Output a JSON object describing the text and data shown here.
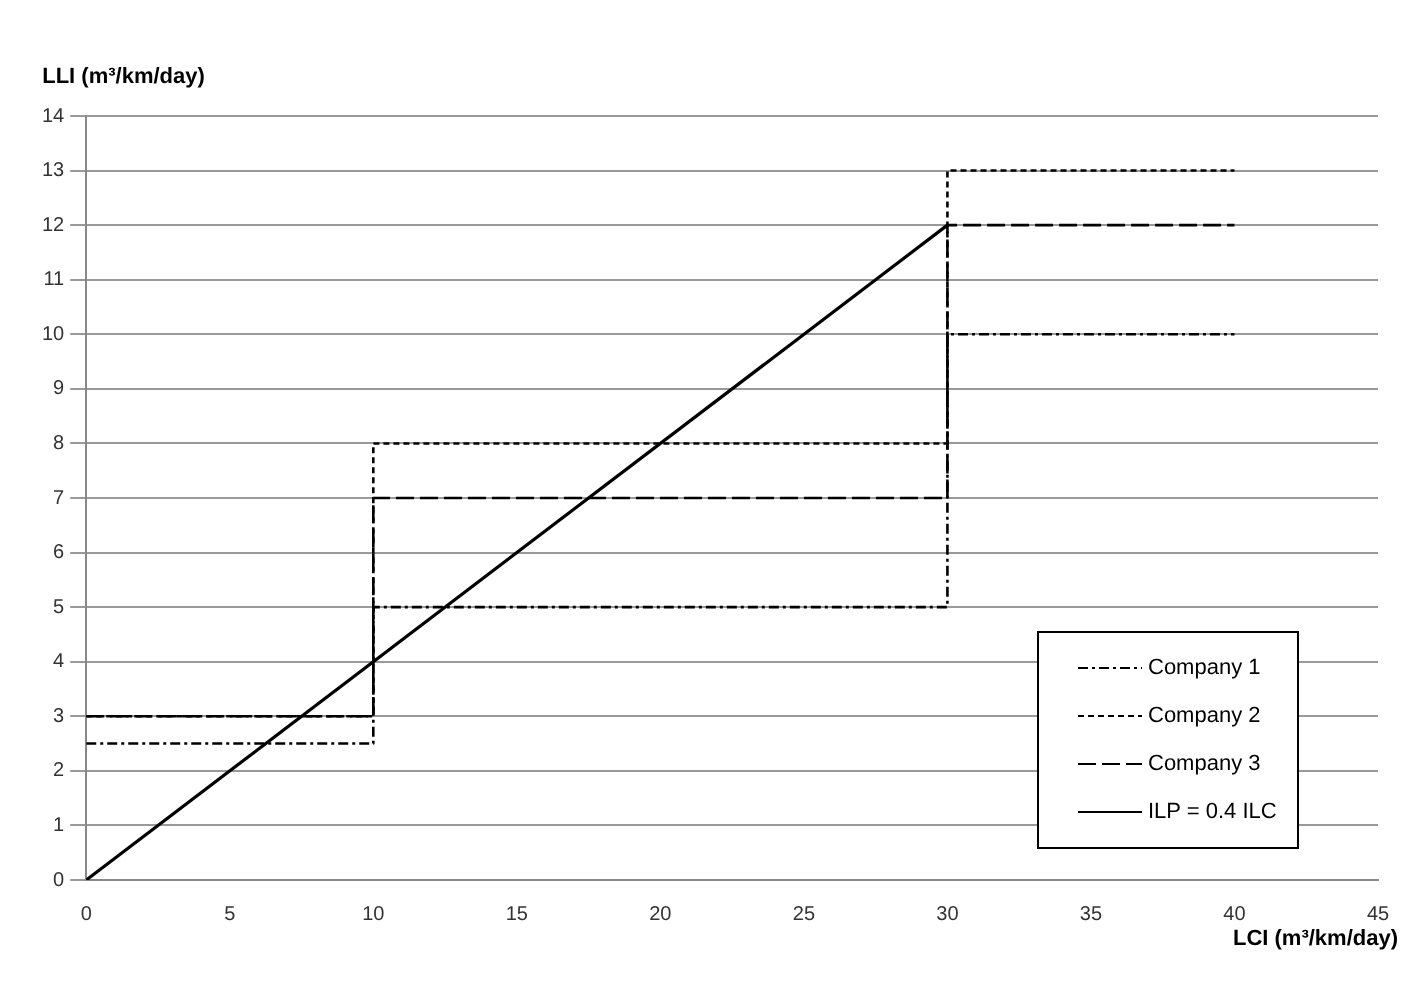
{
  "chart_data": {
    "type": "step",
    "xlabel": "LCI (m³/km/day)",
    "ylabel": "LLI (m³/km/day)",
    "xlim": [
      0,
      45
    ],
    "xticks": [
      0,
      5,
      10,
      15,
      20,
      25,
      30,
      35,
      40,
      45
    ],
    "ylim": [
      0,
      14
    ],
    "yticks": [
      0,
      1,
      2,
      3,
      4,
      5,
      6,
      7,
      8,
      9,
      10,
      11,
      12,
      13,
      14
    ],
    "grid": "y",
    "legend": "bottom right",
    "marker": "none",
    "series": [
      {
        "name": "Company 1",
        "color": "#000000",
        "line_style": "dashdot",
        "x": [
          0,
          10,
          30,
          40
        ],
        "values": [
          2.5,
          5,
          10,
          10
        ]
      },
      {
        "name": "Company 2",
        "color": "#000000",
        "line_style": "dotted",
        "x": [
          0,
          10,
          30,
          40
        ],
        "values": [
          3,
          8,
          13,
          13
        ]
      },
      {
        "name": "Company 3",
        "color": "#000000",
        "line_style": "dashed",
        "x": [
          0,
          10,
          30,
          40
        ],
        "values": [
          3,
          7,
          12,
          12
        ]
      },
      {
        "name": "ILP = 0.4 ILC",
        "type": "line",
        "color": "#000000",
        "line_style": "solid",
        "x": [
          0,
          30
        ],
        "values": [
          0,
          12
        ]
      }
    ]
  }
}
